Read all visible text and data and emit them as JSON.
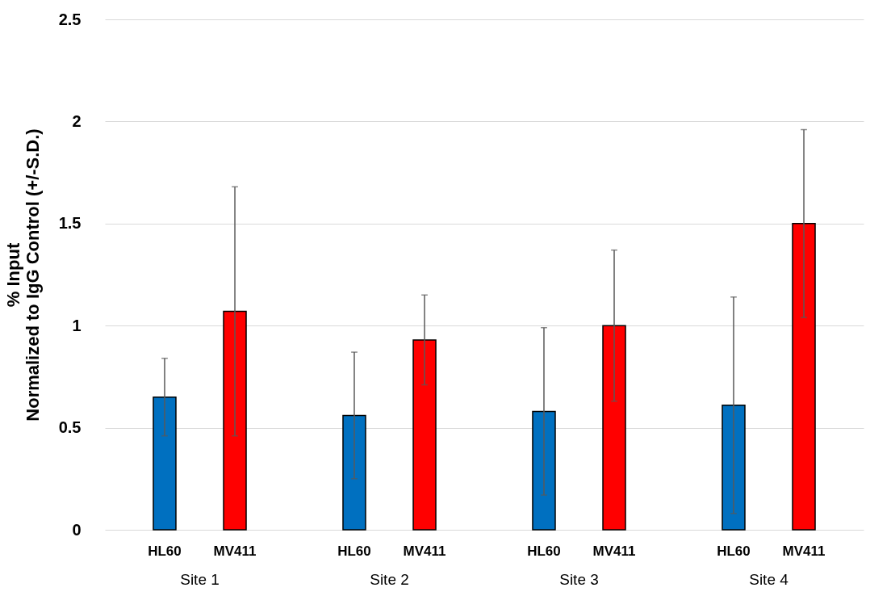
{
  "chart_data": {
    "type": "bar",
    "ylabel": "% Input\nNormalized to IgG Control (+/-S.D.)",
    "categories": [
      "Site 1",
      "Site 2",
      "Site 3",
      "Site 4"
    ],
    "series": [
      {
        "name": "HL60",
        "color": "#0070c0",
        "values": [
          0.65,
          0.56,
          0.58,
          0.61
        ],
        "errors": [
          0.19,
          0.31,
          0.41,
          0.53
        ]
      },
      {
        "name": "MV411",
        "color": "#ff0000",
        "values": [
          1.07,
          0.93,
          1.0,
          1.5
        ],
        "errors": [
          0.61,
          0.22,
          0.37,
          0.46
        ]
      }
    ],
    "ylim": [
      0,
      2.5
    ],
    "yticks": [
      0,
      0.5,
      1,
      1.5,
      2,
      2.5
    ],
    "grid": "y",
    "legend": false
  }
}
